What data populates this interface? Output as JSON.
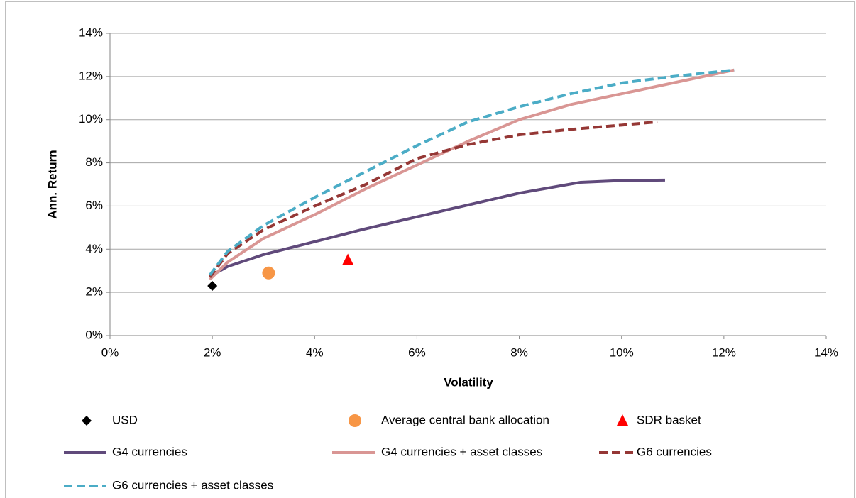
{
  "chart_data": {
    "type": "scatter",
    "xlabel": "Volatility",
    "ylabel": "Ann. Return",
    "xlim": [
      0,
      14
    ],
    "ylim": [
      0,
      14
    ],
    "xticks": [
      {
        "value": 0,
        "label": "0%"
      },
      {
        "value": 2,
        "label": "2%"
      },
      {
        "value": 4,
        "label": "4%"
      },
      {
        "value": 6,
        "label": "6%"
      },
      {
        "value": 8,
        "label": "8%"
      },
      {
        "value": 10,
        "label": "10%"
      },
      {
        "value": 12,
        "label": "12%"
      },
      {
        "value": 14,
        "label": "14%"
      }
    ],
    "yticks": [
      {
        "value": 0,
        "label": "0%"
      },
      {
        "value": 2,
        "label": "2%"
      },
      {
        "value": 4,
        "label": "4%"
      },
      {
        "value": 6,
        "label": "6%"
      },
      {
        "value": 8,
        "label": "8%"
      },
      {
        "value": 10,
        "label": "10%"
      },
      {
        "value": 12,
        "label": "12%"
      },
      {
        "value": 14,
        "label": "14%"
      }
    ],
    "grid": true,
    "series": [
      {
        "name": "USD",
        "color": "#000000",
        "marker": "diamond",
        "x": [
          2.0
        ],
        "values": [
          2.3
        ]
      },
      {
        "name": "Average central bank allocation",
        "color": "#f79646",
        "marker": "circle",
        "x": [
          3.1
        ],
        "values": [
          2.9
        ]
      },
      {
        "name": "SDR basket",
        "color": "#ff0000",
        "marker": "triangle",
        "x": [
          4.65
        ],
        "values": [
          3.5
        ]
      },
      {
        "name": "G4 currencies",
        "color": "#604a7b",
        "line": "solid",
        "x": [
          2,
          2.3,
          3,
          4,
          5,
          6,
          7,
          8,
          9.2,
          10,
          10.85
        ],
        "values": [
          2.8,
          3.2,
          3.75,
          4.35,
          4.95,
          5.5,
          6.05,
          6.6,
          7.1,
          7.18,
          7.2
        ]
      },
      {
        "name": "G4 currencies + asset classes",
        "color": "#d99694",
        "line": "solid",
        "x": [
          1.95,
          2.3,
          3,
          4,
          5,
          6,
          7,
          8,
          9,
          10,
          11,
          12.2
        ],
        "values": [
          2.6,
          3.4,
          4.5,
          5.6,
          6.8,
          7.9,
          9.0,
          10.0,
          10.7,
          11.2,
          11.7,
          12.3
        ]
      },
      {
        "name": "G6 currencies",
        "color": "#953735",
        "line": "dashed",
        "x": [
          1.95,
          2.3,
          3,
          4,
          5,
          6,
          7,
          8,
          9,
          10,
          10.7
        ],
        "values": [
          2.7,
          3.8,
          4.9,
          6.0,
          7.0,
          8.2,
          8.85,
          9.3,
          9.55,
          9.75,
          9.9
        ]
      },
      {
        "name": "G6 currencies + asset classes",
        "color": "#4bacc6",
        "line": "dashed",
        "x": [
          1.95,
          2.3,
          3,
          4,
          5,
          6,
          7,
          8,
          9,
          10,
          11,
          12.2
        ],
        "values": [
          2.8,
          3.9,
          5.1,
          6.4,
          7.6,
          8.8,
          9.9,
          10.6,
          11.2,
          11.7,
          12.0,
          12.3
        ]
      }
    ]
  }
}
